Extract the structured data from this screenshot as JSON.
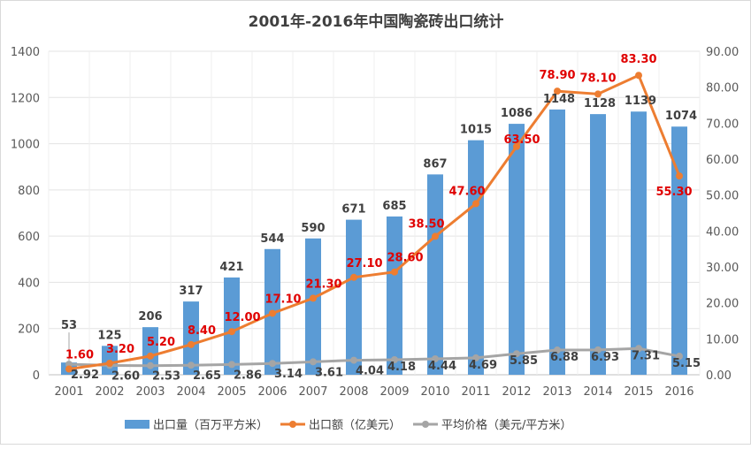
{
  "chart_data": {
    "type": "bar+line",
    "title": "2001年-2016年中国陶瓷砖出口统计",
    "categories": [
      "2001",
      "2002",
      "2003",
      "2004",
      "2005",
      "2006",
      "2007",
      "2008",
      "2009",
      "2010",
      "2011",
      "2012",
      "2013",
      "2014",
      "2015",
      "2016"
    ],
    "left_axis": {
      "range": [
        0,
        1400
      ],
      "ticks": [
        "0",
        "200",
        "400",
        "600",
        "800",
        "1000",
        "1200",
        "1400"
      ]
    },
    "right_axis": {
      "range": [
        0,
        90
      ],
      "ticks": [
        "0.00",
        "10.00",
        "20.00",
        "30.00",
        "40.00",
        "50.00",
        "60.00",
        "70.00",
        "80.00",
        "90.00"
      ]
    },
    "grid": true,
    "legend_position": "bottom",
    "series": [
      {
        "name": "出口量（百万平方米）",
        "type": "bar",
        "axis": "left",
        "color": "#5B9BD5",
        "values": [
          53,
          125,
          206,
          317,
          421,
          544,
          590,
          671,
          685,
          867,
          1015,
          1086,
          1148,
          1128,
          1139,
          1074
        ],
        "labels": [
          "53",
          "125",
          "206",
          "317",
          "421",
          "544",
          "590",
          "671",
          "685",
          "867",
          "1015",
          "1086",
          "1148",
          "1128",
          "1139",
          "1074"
        ]
      },
      {
        "name": "出口额（亿美元）",
        "type": "line",
        "axis": "right",
        "color": "#ED7D31",
        "label_color": "#E00000",
        "values": [
          1.6,
          3.2,
          5.2,
          8.4,
          12.0,
          17.1,
          21.3,
          27.1,
          28.6,
          38.5,
          47.6,
          63.5,
          78.9,
          78.1,
          83.3,
          55.3
        ],
        "labels": [
          "1.60",
          "3.20",
          "5.20",
          "8.40",
          "12.00",
          "17.10",
          "21.30",
          "27.10",
          "28.60",
          "38.50",
          "47.60",
          "63.50",
          "78.90",
          "78.10",
          "83.30",
          "55.30"
        ]
      },
      {
        "name": "平均价格（美元/平方米）",
        "type": "line",
        "axis": "right",
        "color": "#A5A5A5",
        "values": [
          2.92,
          2.6,
          2.53,
          2.65,
          2.86,
          3.14,
          3.61,
          4.04,
          4.18,
          4.44,
          4.69,
          5.85,
          6.88,
          6.93,
          7.31,
          5.15
        ],
        "labels": [
          "2.92",
          "2.60",
          "2.53",
          "2.65",
          "2.86",
          "3.14",
          "3.61",
          "4.04",
          "4.18",
          "4.44",
          "4.69",
          "5.85",
          "6.88",
          "6.93",
          "7.31",
          "5.15"
        ]
      }
    ]
  }
}
